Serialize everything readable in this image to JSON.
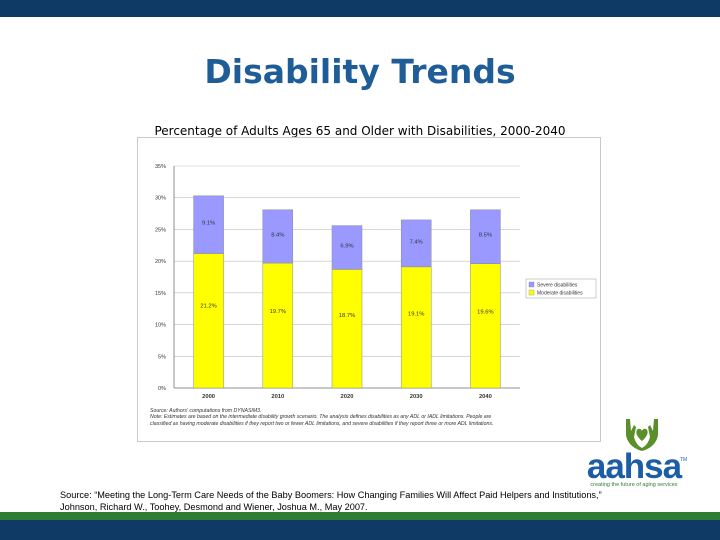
{
  "slide": {
    "title": "Disability Trends",
    "source_line1": "Source: “Meeting the Long-Term Care Needs of the Baby Boomers: How Changing Families Will Affect Paid Helpers and Institutions,”",
    "source_line2": "Johnson, Richard W., Toohey, Desmond and Wiener, Joshua M., May 2007."
  },
  "logo": {
    "name": "aahsa",
    "tm": "TM",
    "tagline": "creating the future of aging services",
    "icon": "hands-heart-icon"
  },
  "colors": {
    "title": "#1f5d99",
    "top_bar": "#0f3a66",
    "bottom_band": "#2e7d32",
    "severe": "#9999ff",
    "moderate": "#ffff00"
  },
  "chart_data": {
    "type": "bar",
    "stacked": true,
    "title": "Percentage of Adults Ages 65 and Older with Disabilities, 2000-2040",
    "categories": [
      "2000",
      "2010",
      "2020",
      "2030",
      "2040"
    ],
    "series": [
      {
        "name": "Moderate disabilities",
        "values": [
          21.2,
          19.7,
          18.7,
          19.1,
          19.6
        ],
        "labels": [
          "21.2%",
          "19.7%",
          "18.7%",
          "19.1%",
          "19.6%"
        ]
      },
      {
        "name": "Severe disabilities",
        "values": [
          9.1,
          8.4,
          6.9,
          7.4,
          8.5
        ],
        "labels": [
          "9.1%",
          "8.4%",
          "6.9%",
          "7.4%",
          "8.5%"
        ]
      }
    ],
    "yticks": [
      "0%",
      "5%",
      "10%",
      "15%",
      "20%",
      "25%",
      "30%",
      "35%"
    ],
    "ylim": [
      0,
      35
    ],
    "grid": true,
    "legend_position": "right",
    "notes": [
      "Source: Authors' computations from DYNASIM3.",
      "Note: Estimates are based on the intermediate disability growth scenario. The analysis defines disabilities as any ADL or IADL limitations. People are",
      "classified as having moderate disabilities if they report two or fewer ADL limitations, and severe disabilities if they report three or more ADL limitations."
    ]
  }
}
